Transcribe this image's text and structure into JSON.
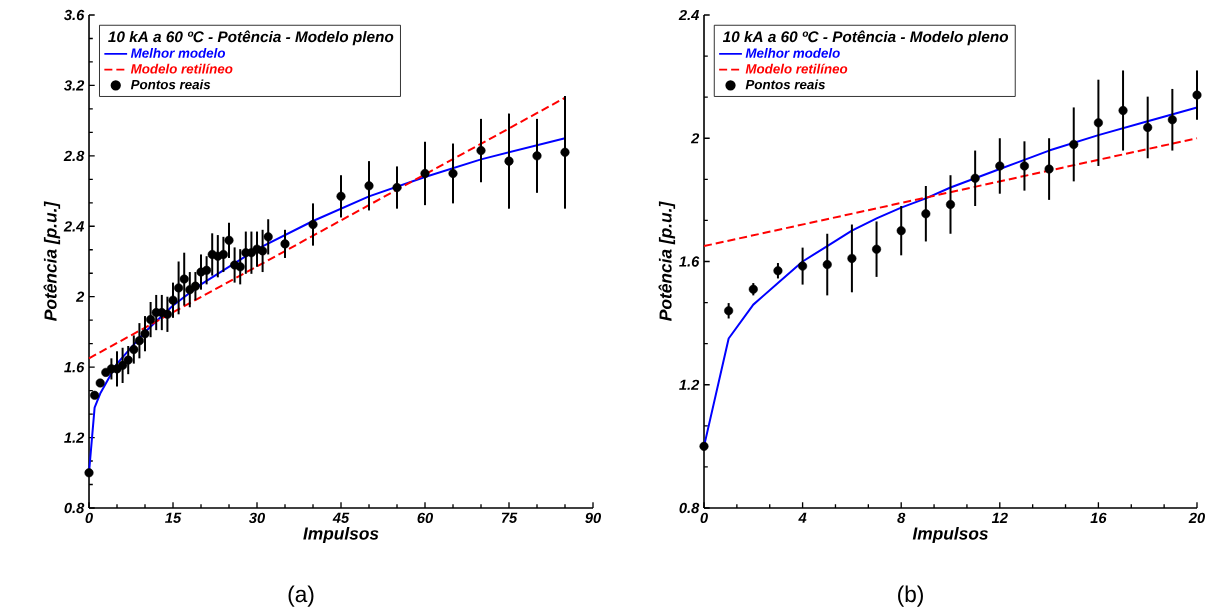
{
  "chart_data": [
    {
      "type": "scatter",
      "xlabel": "Impulsos",
      "ylabel": "Potência [p.u.]",
      "legend_title": "10 kA a 60 ºC - Potência - Modelo pleno",
      "legend": "top left",
      "annotations": [
        "(a)"
      ],
      "xlim": [
        0,
        90
      ],
      "ylim": [
        0.8,
        3.6
      ],
      "xticks": [
        0,
        15,
        30,
        45,
        60,
        75,
        90
      ],
      "yticks": [
        0.8,
        1.2,
        1.6,
        2,
        2.4,
        2.8,
        3.2,
        3.6
      ],
      "series": [
        {
          "name": "Melhor modelo",
          "type": "line",
          "color": "#0000ff",
          "marker": "none",
          "line_style": "solid",
          "x": [
            0,
            1,
            2,
            5,
            10,
            15,
            20,
            30,
            40,
            50,
            60,
            70,
            85
          ],
          "values": [
            1.0,
            1.37,
            1.45,
            1.62,
            1.8,
            1.95,
            2.07,
            2.27,
            2.43,
            2.57,
            2.68,
            2.78,
            2.9
          ]
        },
        {
          "name": "Modelo retilíneo",
          "type": "line",
          "color": "#ff0000",
          "marker": "none",
          "line_style": "dashed",
          "x": [
            0,
            85
          ],
          "values": [
            1.65,
            3.13
          ]
        },
        {
          "name": "Pontos reais",
          "color": "#000000",
          "marker": "circle",
          "x": [
            0,
            1,
            2,
            3,
            4,
            5,
            6,
            7,
            8,
            9,
            10,
            11,
            12,
            13,
            14,
            15,
            16,
            17,
            18,
            19,
            20,
            21,
            22,
            23,
            24,
            25,
            26,
            27,
            28,
            29,
            30,
            31,
            32,
            35,
            40,
            45,
            50,
            55,
            60,
            65,
            70,
            75,
            80,
            85
          ],
          "values": [
            1.0,
            1.44,
            1.51,
            1.57,
            1.59,
            1.59,
            1.61,
            1.64,
            1.7,
            1.75,
            1.79,
            1.87,
            1.91,
            1.91,
            1.9,
            1.98,
            2.05,
            2.1,
            2.04,
            2.06,
            2.14,
            2.15,
            2.24,
            2.23,
            2.24,
            2.32,
            2.18,
            2.17,
            2.25,
            2.25,
            2.27,
            2.26,
            2.34,
            2.3,
            2.41,
            2.57,
            2.63,
            2.62,
            2.7,
            2.7,
            2.83,
            2.77,
            2.8,
            2.82
          ],
          "errors": [
            null,
            null,
            null,
            0.02,
            0.06,
            0.1,
            0.1,
            0.08,
            0.08,
            0.1,
            0.1,
            0.1,
            0.1,
            0.1,
            0.1,
            0.1,
            0.15,
            0.15,
            0.1,
            0.08,
            0.1,
            0.08,
            0.12,
            0.12,
            0.1,
            0.1,
            0.1,
            0.1,
            0.12,
            0.12,
            0.1,
            0.12,
            0.1,
            0.08,
            0.12,
            0.12,
            0.14,
            0.12,
            0.18,
            0.17,
            0.18,
            0.27,
            0.21,
            0.32
          ]
        }
      ]
    },
    {
      "type": "scatter",
      "xlabel": "Impulsos",
      "ylabel": "Potência [p.u.]",
      "legend_title": "10 kA a 60 ºC - Potência - Modelo pleno",
      "legend": "top left",
      "annotations": [
        "(b)"
      ],
      "xlim": [
        0,
        20
      ],
      "ylim": [
        0.8,
        2.4
      ],
      "xticks": [
        0,
        4,
        8,
        12,
        16,
        20
      ],
      "yticks": [
        0.8,
        1.2,
        1.6,
        2,
        2.4
      ],
      "series": [
        {
          "name": "Melhor modelo",
          "type": "line",
          "color": "#0000ff",
          "marker": "none",
          "line_style": "solid",
          "x": [
            0,
            1,
            2,
            3,
            4,
            5,
            6,
            7,
            8,
            9,
            10,
            12,
            14,
            16,
            18,
            20
          ],
          "values": [
            1.0,
            1.35,
            1.46,
            1.53,
            1.6,
            1.65,
            1.7,
            1.74,
            1.775,
            1.805,
            1.84,
            1.9,
            1.96,
            2.01,
            2.055,
            2.1
          ]
        },
        {
          "name": "Modelo retilíneo",
          "type": "line",
          "color": "#ff0000",
          "marker": "none",
          "line_style": "dashed",
          "x": [
            0,
            20
          ],
          "values": [
            1.65,
            2.0
          ]
        },
        {
          "name": "Pontos reais",
          "color": "#000000",
          "marker": "circle",
          "x": [
            0,
            1,
            2,
            3,
            4,
            5,
            6,
            7,
            8,
            9,
            10,
            11,
            12,
            13,
            14,
            15,
            16,
            17,
            18,
            19,
            20
          ],
          "values": [
            1.0,
            1.44,
            1.51,
            1.57,
            1.585,
            1.59,
            1.61,
            1.64,
            1.7,
            1.755,
            1.785,
            1.87,
            1.91,
            1.91,
            1.9,
            1.98,
            2.05,
            2.09,
            2.035,
            2.06,
            2.14
          ],
          "errors": [
            null,
            0.025,
            0.02,
            0.025,
            0.06,
            0.1,
            0.11,
            0.09,
            0.08,
            0.09,
            0.095,
            0.09,
            0.09,
            0.08,
            0.1,
            0.12,
            0.14,
            0.13,
            0.1,
            0.1,
            0.08
          ]
        }
      ]
    }
  ]
}
